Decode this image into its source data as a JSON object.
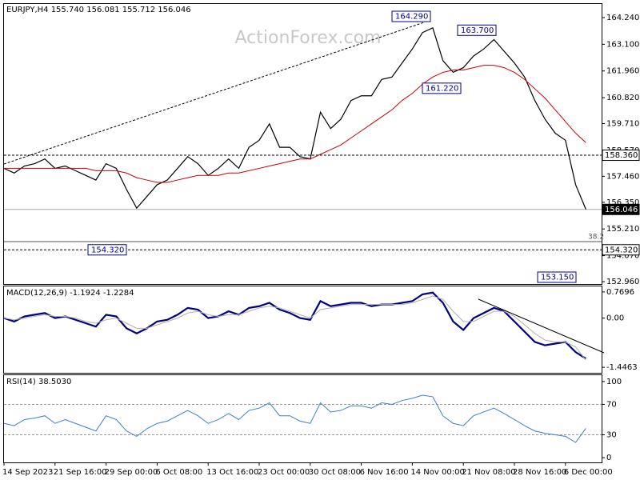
{
  "chart_data": [
    {
      "type": "line",
      "title": "EURJPY,H4  155.740 156.081 155.712 156.046",
      "watermark": "ActionForex.com",
      "series": [
        {
          "color": "#000000",
          "values": [
            157.8,
            157.6,
            157.9,
            158.0,
            158.2,
            157.8,
            157.9,
            157.7,
            157.5,
            157.3,
            158.0,
            157.8,
            156.9,
            156.1,
            156.6,
            157.1,
            157.3,
            157.8,
            158.3,
            158.0,
            157.5,
            157.8,
            158.2,
            157.8,
            158.7,
            159.0,
            159.7,
            158.7,
            158.7,
            158.3,
            158.2,
            160.2,
            159.5,
            159.9,
            160.7,
            160.9,
            160.9,
            161.6,
            161.7,
            162.3,
            162.9,
            163.6,
            163.8,
            162.4,
            161.9,
            162.1,
            162.6,
            162.9,
            163.3,
            162.8,
            162.3,
            161.7,
            160.7,
            159.9,
            159.3,
            159.0,
            157.1,
            156.05
          ]
        },
        {
          "color": "#cc0000",
          "values": [
            157.8,
            157.8,
            157.8,
            157.8,
            157.8,
            157.8,
            157.8,
            157.8,
            157.8,
            157.7,
            157.7,
            157.7,
            157.6,
            157.4,
            157.3,
            157.2,
            157.2,
            157.3,
            157.4,
            157.5,
            157.5,
            157.5,
            157.6,
            157.6,
            157.7,
            157.8,
            157.9,
            158.0,
            158.1,
            158.2,
            158.2,
            158.4,
            158.6,
            158.8,
            159.1,
            159.4,
            159.7,
            160.0,
            160.3,
            160.7,
            161.0,
            161.4,
            161.7,
            161.9,
            162.0,
            162.0,
            162.1,
            162.2,
            162.2,
            162.1,
            161.9,
            161.6,
            161.2,
            160.8,
            160.3,
            159.8,
            159.3,
            158.9
          ]
        }
      ],
      "ylim": [
        152.86,
        164.82
      ],
      "yticks": [
        {
          "value": 164.24,
          "label": "164.240"
        },
        {
          "value": 163.1,
          "label": "163.100"
        },
        {
          "value": 161.96,
          "label": "161.960"
        },
        {
          "value": 160.82,
          "label": "160.820"
        },
        {
          "value": 159.71,
          "label": "159.710"
        },
        {
          "value": 158.57,
          "label": "158.570"
        },
        {
          "value": 157.46,
          "label": "157.460"
        },
        {
          "value": 156.35,
          "label": "156.350"
        },
        {
          "value": 155.21,
          "label": "155.210"
        },
        {
          "value": 154.07,
          "label": "154.070"
        },
        {
          "value": 152.96,
          "label": "152.960"
        }
      ],
      "annotations": [
        {
          "value": 154.32,
          "label": "154.320"
        },
        {
          "value": 164.29,
          "label": "164.290"
        },
        {
          "value": 163.7,
          "label": "163.700"
        },
        {
          "value": 161.22,
          "label": "161.220"
        },
        {
          "value": 153.15,
          "label": "153.150"
        }
      ],
      "levels": [
        {
          "value": 158.36,
          "label": "158.360"
        },
        {
          "value": 154.32,
          "label": "154.320"
        },
        {
          "value": 156.046,
          "label": "156.046"
        }
      ],
      "fib": {
        "value": 154.67,
        "label": "38.2"
      }
    },
    {
      "type": "line",
      "title": "MACD(12,26,9) -1.1924 -1.2284",
      "series": [
        {
          "color": "#000080",
          "values": [
            0.0,
            -0.1,
            0.05,
            0.1,
            0.15,
            0.0,
            0.05,
            -0.05,
            -0.15,
            -0.25,
            0.1,
            0.05,
            -0.3,
            -0.45,
            -0.3,
            -0.1,
            -0.05,
            0.1,
            0.3,
            0.25,
            0.0,
            0.05,
            0.2,
            0.1,
            0.3,
            0.35,
            0.45,
            0.25,
            0.15,
            0.0,
            -0.05,
            0.5,
            0.35,
            0.4,
            0.45,
            0.45,
            0.35,
            0.4,
            0.4,
            0.45,
            0.5,
            0.7,
            0.75,
            0.45,
            -0.1,
            -0.35,
            0.0,
            0.15,
            0.3,
            0.2,
            -0.1,
            -0.4,
            -0.7,
            -0.8,
            -0.75,
            -0.7,
            -1.0,
            -1.19
          ]
        },
        {
          "color": "#b0b0b0",
          "values": [
            0.0,
            -0.05,
            0.0,
            0.05,
            0.1,
            0.05,
            0.05,
            0.0,
            -0.1,
            -0.15,
            -0.05,
            0.0,
            -0.15,
            -0.3,
            -0.3,
            -0.2,
            -0.1,
            0.0,
            0.15,
            0.2,
            0.1,
            0.05,
            0.1,
            0.1,
            0.2,
            0.3,
            0.35,
            0.3,
            0.2,
            0.1,
            0.0,
            0.25,
            0.3,
            0.35,
            0.4,
            0.4,
            0.4,
            0.4,
            0.4,
            0.4,
            0.45,
            0.55,
            0.65,
            0.55,
            0.2,
            -0.1,
            -0.1,
            0.05,
            0.2,
            0.2,
            0.05,
            -0.2,
            -0.45,
            -0.65,
            -0.7,
            -0.7,
            -0.85,
            -1.23
          ]
        }
      ],
      "ylim": [
        -1.608,
        0.932
      ],
      "yticks": [
        0.7696,
        {
          "value": 0,
          "label": "0.00"
        },
        -1.4463
      ]
    },
    {
      "type": "line",
      "title": "RSI(14) 38.5030",
      "series": [
        {
          "color": "#3a7fd5",
          "values": [
            45,
            42,
            50,
            52,
            55,
            45,
            50,
            45,
            40,
            35,
            55,
            50,
            35,
            28,
            38,
            45,
            48,
            55,
            62,
            55,
            45,
            50,
            58,
            50,
            62,
            65,
            72,
            55,
            55,
            48,
            45,
            72,
            60,
            62,
            68,
            68,
            65,
            72,
            70,
            75,
            78,
            82,
            80,
            55,
            45,
            42,
            55,
            60,
            65,
            58,
            50,
            42,
            35,
            32,
            30,
            28,
            20,
            38.5
          ]
        }
      ],
      "ylim": [
        -6.25,
        108.3
      ],
      "yticks": [
        100,
        70,
        30,
        0
      ],
      "levels": [
        70,
        30
      ],
      "categories": [
        "14 Sep 2023",
        null,
        null,
        null,
        null,
        "21 Sep 16:00",
        null,
        null,
        null,
        null,
        "29 Sep 00:00",
        null,
        null,
        null,
        null,
        "6 Oct 08:00",
        null,
        null,
        null,
        null,
        "13 Oct 16:00",
        null,
        null,
        null,
        null,
        "23 Oct 00:00",
        null,
        null,
        null,
        null,
        "30 Oct 08:00",
        null,
        null,
        null,
        null,
        "6 Nov 16:00",
        null,
        null,
        null,
        null,
        "14 Nov 00:00",
        null,
        null,
        null,
        null,
        "21 Nov 08:00",
        null,
        null,
        null,
        null,
        "28 Nov 16:00",
        null,
        null,
        null,
        null,
        "6 Dec 00:00",
        null,
        null
      ]
    }
  ]
}
